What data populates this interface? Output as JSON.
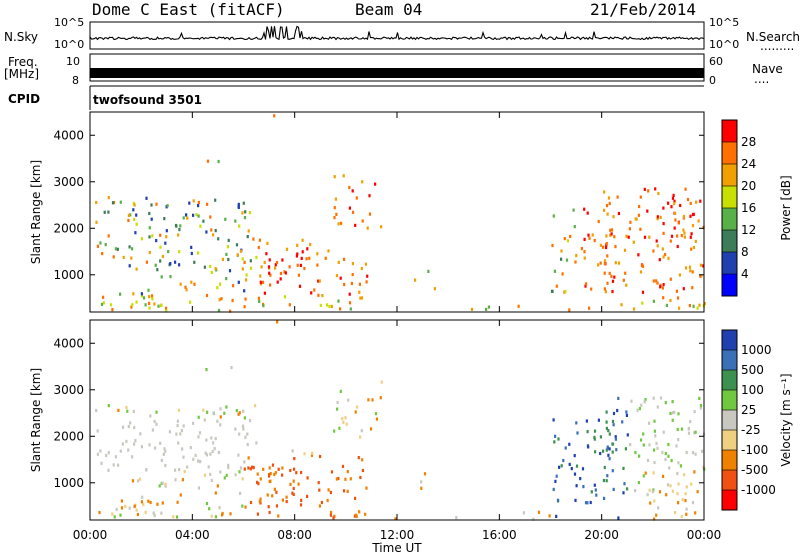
{
  "header": {
    "station": "Dome C East (fitACF)",
    "beam": "Beam 04",
    "date": "21/Feb/2014"
  },
  "top_panels": {
    "nsky_label": "N.Sky",
    "nsky_ticks": [
      "10^5",
      "10^0"
    ],
    "nsky_right_ticks": [
      "10^5",
      "10^0"
    ],
    "nsearch_label": "N.Search",
    "nsearch_dots": ".........",
    "freq_label": "Freq.",
    "freq_unit": "[MHz]",
    "freq_ticks": [
      "10",
      "8"
    ],
    "nave_ticks": [
      "60",
      "0"
    ],
    "nave_label": "Nave",
    "nave_dots": "....",
    "cpid_label": "CPID",
    "cpid_value": "twofsound 3501"
  },
  "chart_data": [
    {
      "type": "heatmap",
      "title": "",
      "xlabel": "Time UT",
      "ylabel": "Slant Range [km]",
      "x_ticks": [
        "00:00",
        "04:00",
        "08:00",
        "12:00",
        "16:00",
        "20:00",
        "00:00"
      ],
      "y_ticks": [
        1000,
        2000,
        3000,
        4000
      ],
      "ylim": [
        200,
        4500
      ],
      "colorbar_label": "Power [dB]",
      "colorbar_ticks": [
        "28",
        "24",
        "20",
        "16",
        "12",
        "8",
        "4"
      ],
      "colors": [
        "#ff0000",
        "#ff7000",
        "#f0a000",
        "#c8e000",
        "#58b048",
        "#3c7c58",
        "#2040b0",
        "#0000ff"
      ]
    },
    {
      "type": "heatmap",
      "title": "",
      "xlabel": "Time UT",
      "ylabel": "Slant Range [km]",
      "x_ticks": [
        "00:00",
        "04:00",
        "08:00",
        "12:00",
        "16:00",
        "20:00",
        "00:00"
      ],
      "y_ticks": [
        1000,
        2000,
        3000,
        4000
      ],
      "ylim": [
        200,
        4500
      ],
      "colorbar_label": "Velocity [m s⁻¹]",
      "colorbar_ticks": [
        "1000",
        "500",
        "100",
        "25",
        "-25",
        "-100",
        "-500",
        "-1000"
      ],
      "colors": [
        "#2040b0",
        "#3a70b8",
        "#3c9050",
        "#70c840",
        "#c8c8c0",
        "#f0d080",
        "#f08000",
        "#f05010",
        "#ff0000"
      ]
    }
  ]
}
